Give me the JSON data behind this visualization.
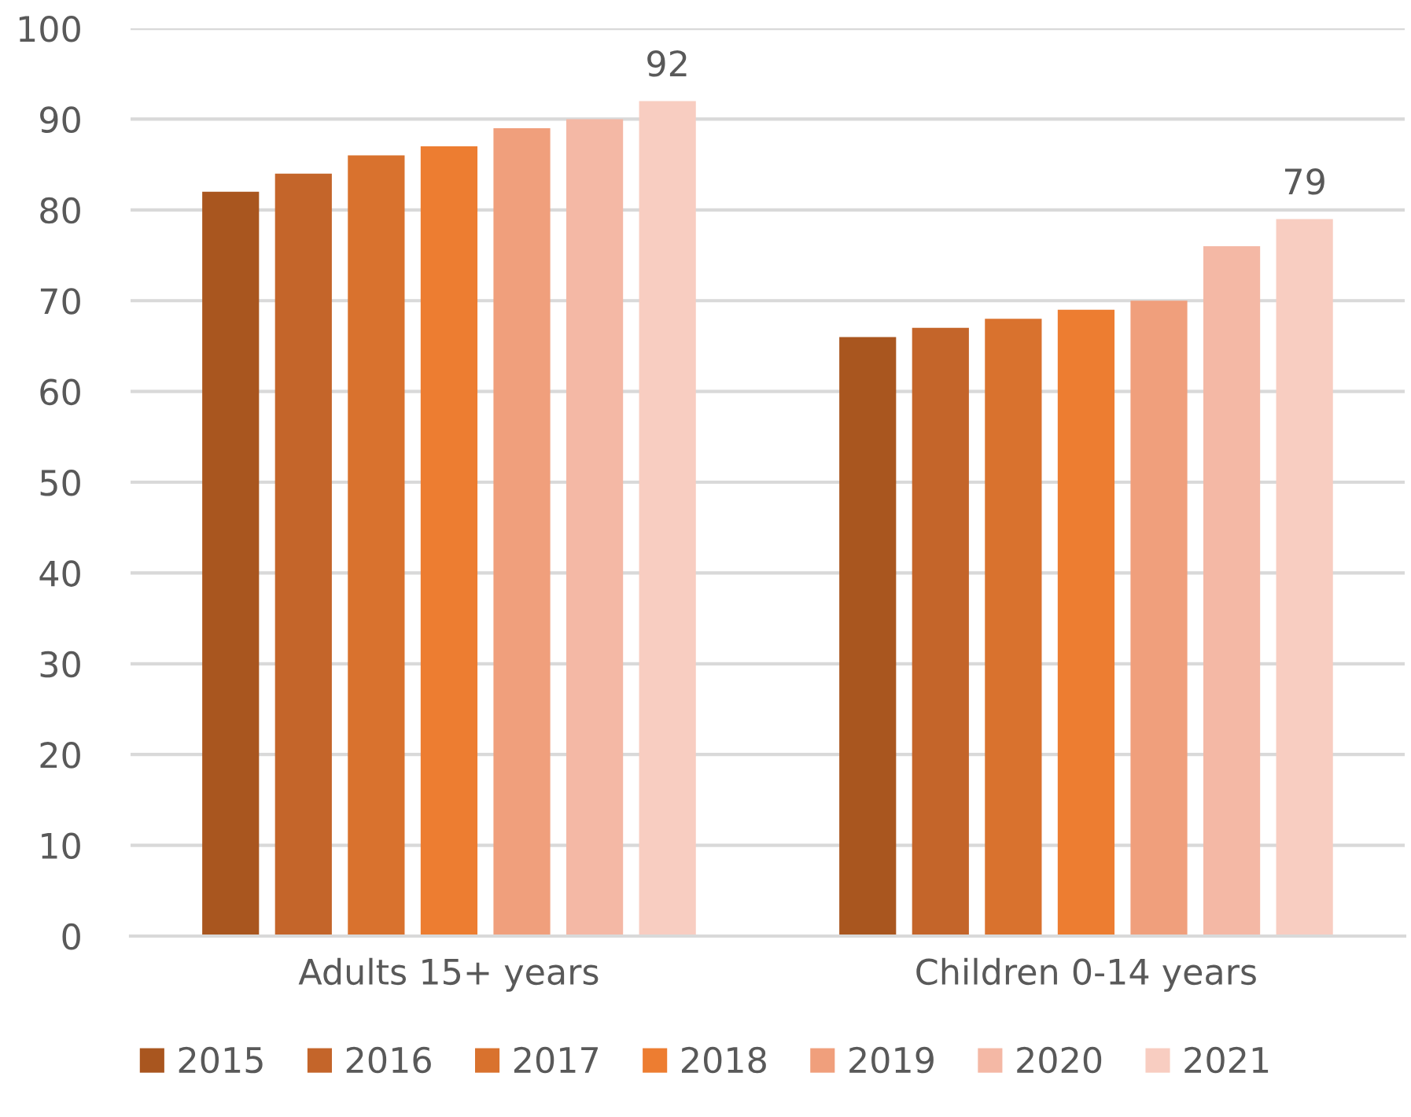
{
  "chart_data": {
    "type": "bar",
    "categories": [
      "Adults 15+ years",
      "Children 0-14 years"
    ],
    "series": [
      {
        "name": "2015",
        "color": "#a9561f",
        "values": [
          82,
          66
        ]
      },
      {
        "name": "2016",
        "color": "#c4652a",
        "values": [
          84,
          67
        ]
      },
      {
        "name": "2017",
        "color": "#d9722e",
        "values": [
          86,
          68
        ]
      },
      {
        "name": "2018",
        "color": "#ed7d31",
        "values": [
          87,
          69
        ]
      },
      {
        "name": "2019",
        "color": "#f09f7c",
        "values": [
          89,
          70
        ]
      },
      {
        "name": "2020",
        "color": "#f4b8a5",
        "values": [
          90,
          76
        ]
      },
      {
        "name": "2021",
        "color": "#f8cdc1",
        "values": [
          92,
          79
        ],
        "value_labels": [
          "92",
          "79"
        ]
      }
    ],
    "ylim": [
      0,
      100
    ],
    "yticks": [
      0,
      10,
      20,
      30,
      40,
      50,
      60,
      70,
      80,
      90,
      100
    ],
    "grid": "y",
    "legend": "bottom"
  }
}
